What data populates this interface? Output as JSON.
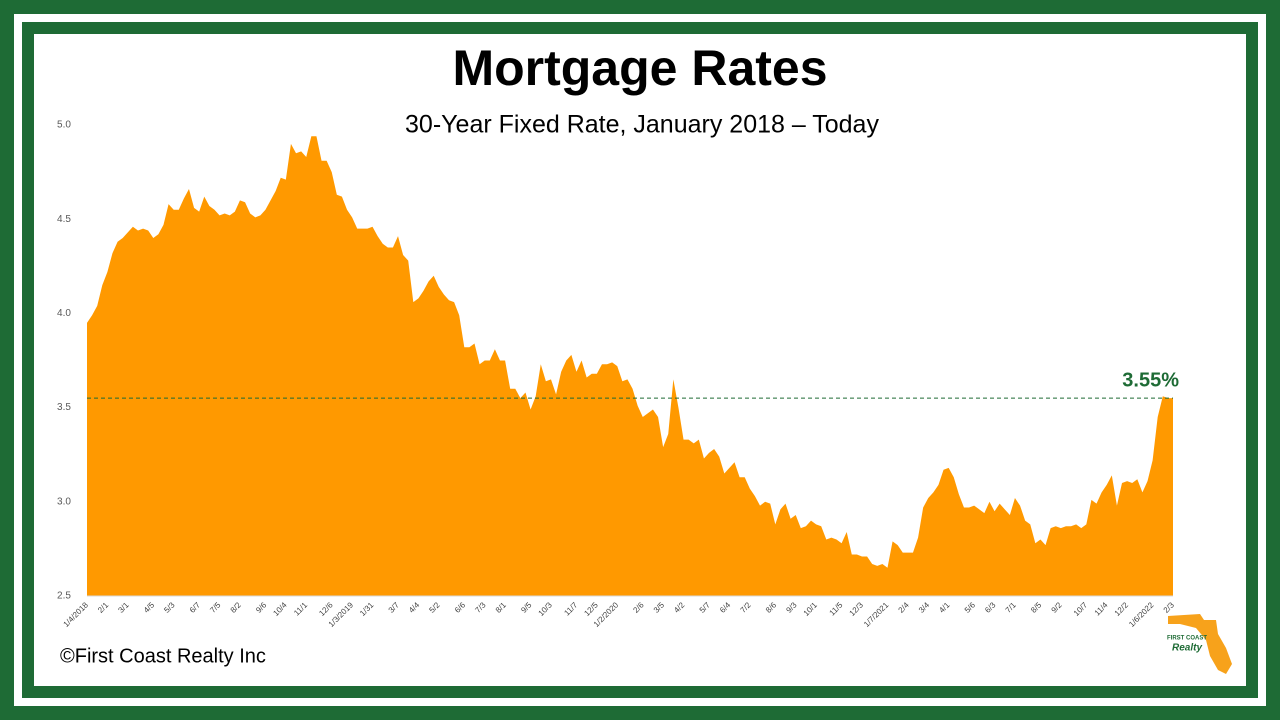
{
  "chart_data": {
    "type": "area",
    "title": "Mortgage Rates",
    "subtitle": "30-Year Fixed Rate, January 2018 – Today",
    "source": "©First Coast Realty Inc",
    "brand": {
      "name": "FIRST COAST",
      "script": "Realty"
    },
    "color": "#ff9900",
    "ylim": [
      2.5,
      5.0
    ],
    "yticks": [
      {
        "value": 2.5,
        "label": "2.5"
      },
      {
        "value": 3.0,
        "label": "3.0"
      },
      {
        "value": 3.5,
        "label": "3.5"
      },
      {
        "value": 4.0,
        "label": "4.0"
      },
      {
        "value": 4.5,
        "label": "4.5"
      },
      {
        "value": 5.0,
        "label": "5.0"
      }
    ],
    "reference_line": {
      "value": 3.55,
      "label": "3.55%",
      "color": "#1e6b35"
    },
    "categories": [
      "1/4/2018",
      null,
      null,
      null,
      "2/1",
      null,
      null,
      null,
      "3/1",
      null,
      null,
      null,
      null,
      "4/5",
      null,
      null,
      null,
      "5/3",
      null,
      null,
      null,
      null,
      "6/7",
      null,
      null,
      null,
      "7/5",
      null,
      null,
      null,
      "8/2",
      null,
      null,
      null,
      null,
      "9/6",
      null,
      null,
      null,
      "10/4",
      null,
      null,
      null,
      "11/1",
      null,
      null,
      null,
      null,
      "12/6",
      null,
      null,
      null,
      "1/3/2019",
      null,
      null,
      null,
      "1/31",
      null,
      null,
      null,
      null,
      "3/7",
      null,
      null,
      null,
      "4/4",
      null,
      null,
      null,
      "5/2",
      null,
      null,
      null,
      null,
      "6/6",
      null,
      null,
      null,
      "7/3",
      null,
      null,
      null,
      "8/1",
      null,
      null,
      null,
      null,
      "9/5",
      null,
      null,
      null,
      "10/3",
      null,
      null,
      null,
      null,
      "11/7",
      null,
      null,
      null,
      "12/5",
      null,
      null,
      null,
      "1/2/2020",
      null,
      null,
      null,
      null,
      "2/6",
      null,
      null,
      null,
      "3/5",
      null,
      null,
      null,
      "4/2",
      null,
      null,
      null,
      null,
      "5/7",
      null,
      null,
      null,
      "6/4",
      null,
      null,
      null,
      "7/2",
      null,
      null,
      null,
      null,
      "8/6",
      null,
      null,
      null,
      "9/3",
      null,
      null,
      null,
      "10/1",
      null,
      null,
      null,
      null,
      "11/5",
      null,
      null,
      null,
      "12/3",
      null,
      null,
      null,
      null,
      "1/7/2021",
      null,
      null,
      null,
      "2/4",
      null,
      null,
      null,
      "3/4",
      null,
      null,
      null,
      "4/1",
      null,
      null,
      null,
      null,
      "5/6",
      null,
      null,
      null,
      "6/3",
      null,
      null,
      null,
      "7/1",
      null,
      null,
      null,
      null,
      "8/5",
      null,
      null,
      null,
      "9/2",
      null,
      null,
      null,
      null,
      "10/7",
      null,
      null,
      null,
      "11/4",
      null,
      null,
      null,
      "12/2",
      null,
      null,
      null,
      null,
      "1/6/2022",
      null,
      null,
      null,
      "2/3"
    ],
    "values": [
      3.95,
      3.99,
      4.04,
      4.15,
      4.22,
      4.32,
      4.38,
      4.4,
      4.43,
      4.46,
      4.44,
      4.45,
      4.44,
      4.4,
      4.42,
      4.47,
      4.58,
      4.55,
      4.55,
      4.61,
      4.66,
      4.56,
      4.54,
      4.62,
      4.57,
      4.55,
      4.52,
      4.53,
      4.52,
      4.54,
      4.6,
      4.59,
      4.53,
      4.51,
      4.52,
      4.55,
      4.6,
      4.65,
      4.72,
      4.71,
      4.9,
      4.85,
      4.86,
      4.83,
      4.94,
      4.94,
      4.81,
      4.81,
      4.75,
      4.63,
      4.62,
      4.55,
      4.51,
      4.45,
      4.45,
      4.45,
      4.46,
      4.41,
      4.37,
      4.35,
      4.35,
      4.41,
      4.31,
      4.28,
      4.06,
      4.08,
      4.12,
      4.17,
      4.2,
      4.14,
      4.1,
      4.07,
      4.06,
      3.99,
      3.82,
      3.82,
      3.84,
      3.73,
      3.75,
      3.75,
      3.81,
      3.75,
      3.75,
      3.6,
      3.6,
      3.55,
      3.58,
      3.49,
      3.56,
      3.73,
      3.64,
      3.65,
      3.57,
      3.69,
      3.75,
      3.78,
      3.69,
      3.75,
      3.66,
      3.68,
      3.68,
      3.73,
      3.73,
      3.74,
      3.72,
      3.64,
      3.65,
      3.6,
      3.51,
      3.45,
      3.47,
      3.49,
      3.45,
      3.29,
      3.36,
      3.65,
      3.5,
      3.33,
      3.33,
      3.31,
      3.33,
      3.23,
      3.26,
      3.28,
      3.24,
      3.15,
      3.18,
      3.21,
      3.13,
      3.13,
      3.07,
      3.03,
      2.98,
      3.0,
      2.99,
      2.88,
      2.96,
      2.99,
      2.91,
      2.93,
      2.86,
      2.87,
      2.9,
      2.88,
      2.87,
      2.8,
      2.81,
      2.8,
      2.78,
      2.84,
      2.72,
      2.72,
      2.71,
      2.71,
      2.67,
      2.66,
      2.67,
      2.65,
      2.79,
      2.77,
      2.73,
      2.73,
      2.73,
      2.81,
      2.97,
      3.02,
      3.05,
      3.09,
      3.17,
      3.18,
      3.13,
      3.04,
      2.97,
      2.97,
      2.98,
      2.96,
      2.94,
      3.0,
      2.95,
      2.99,
      2.96,
      2.93,
      3.02,
      2.98,
      2.9,
      2.88,
      2.78,
      2.8,
      2.77,
      2.86,
      2.87,
      2.86,
      2.87,
      2.87,
      2.88,
      2.86,
      2.88,
      3.01,
      2.99,
      3.05,
      3.09,
      3.14,
      2.98,
      3.1,
      3.11,
      3.1,
      3.12,
      3.05,
      3.11,
      3.22,
      3.45,
      3.56,
      3.55,
      3.55
    ]
  }
}
